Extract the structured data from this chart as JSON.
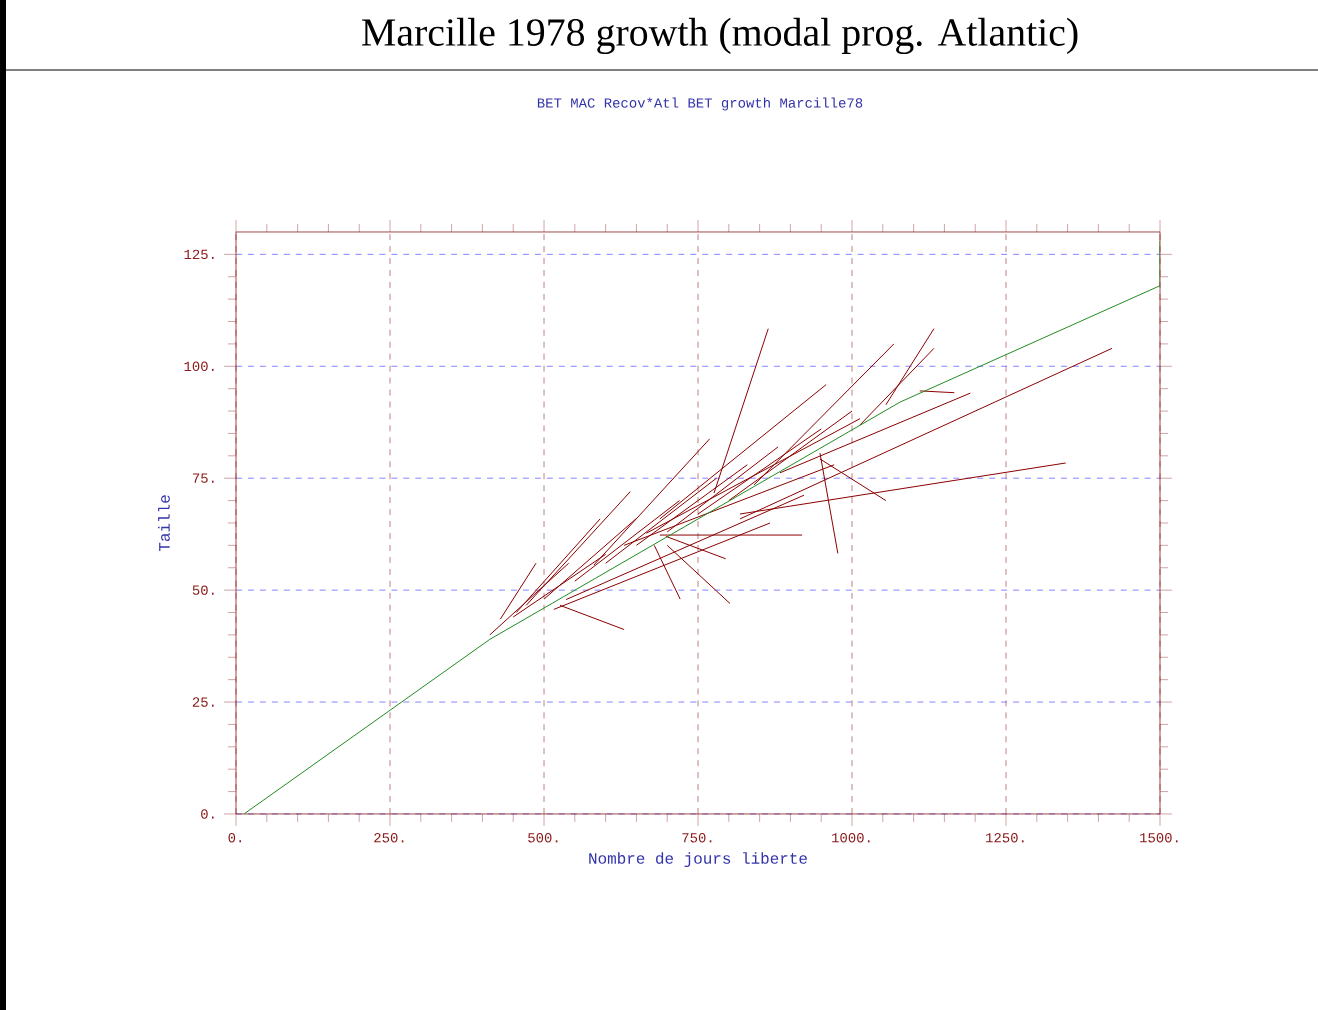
{
  "chart_data": {
    "type": "line",
    "title": "Marcille 1978 growth (modal prog. Atlantic)",
    "subtitle": "BET MAC Recov*Atl BET growth Marcille78",
    "xlabel": "Nombre de jours liberte",
    "ylabel": "Taille",
    "xlim": [
      0,
      1500
    ],
    "ylim": [
      0,
      130
    ],
    "xticks": [
      {
        "value": 0,
        "label": "0."
      },
      {
        "value": 250,
        "label": "250."
      },
      {
        "value": 500,
        "label": "500."
      },
      {
        "value": 750,
        "label": "750."
      },
      {
        "value": 1000,
        "label": "1000."
      },
      {
        "value": 1250,
        "label": "1250."
      },
      {
        "value": 1500,
        "label": "1500."
      }
    ],
    "yticks": [
      {
        "value": 0,
        "label": "0."
      },
      {
        "value": 25,
        "label": "25."
      },
      {
        "value": 50,
        "label": "50."
      },
      {
        "value": 75,
        "label": "75."
      },
      {
        "value": 100,
        "label": "100."
      },
      {
        "value": 125,
        "label": "125."
      }
    ],
    "grid": true,
    "marker": "none",
    "line_style": "solid",
    "series": [
      {
        "color": "#8b0000",
        "x": [
          412,
          540,
          null,
          776,
          864,
          null,
          1055,
          1133,
          null,
          841,
          1068,
          null,
          818,
          1422,
          null,
          818,
          1347,
          null,
          948,
          977,
          null,
          948,
          1055,
          null,
          688,
          919,
          null,
          700,
          802,
          null,
          679,
          721,
          null,
          526,
          630,
          null,
          471,
          640,
          null,
          581,
          769,
          null,
          688,
          958,
          null,
          1013,
          1133,
          null,
          883,
          1192,
          null,
          1110,
          1166,
          null,
          429,
          487,
          null,
          455,
          591,
          null,
          536,
          922,
          null,
          516,
          867,
          null,
          666,
          1013,
          null,
          630,
          971,
          null,
          698,
          795,
          null,
          450,
          600,
          null,
          500,
          650,
          null,
          550,
          720,
          null,
          600,
          780,
          null,
          650,
          830,
          null,
          700,
          880,
          null,
          750,
          950,
          null,
          800,
          1000
        ],
        "values": [
          40,
          56,
          null,
          71.7,
          108.4,
          null,
          91.4,
          108.4,
          null,
          73.5,
          105,
          null,
          65.9,
          104,
          null,
          67,
          78.4,
          null,
          80.6,
          58.2,
          null,
          79.3,
          70,
          null,
          62.3,
          62.3,
          null,
          60,
          47,
          null,
          60,
          48,
          null,
          46.6,
          41.2,
          null,
          46.6,
          72,
          null,
          55.6,
          83.8,
          null,
          65.9,
          95.9,
          null,
          86.9,
          104,
          null,
          76.2,
          94,
          null,
          94.5,
          94.1,
          null,
          43.5,
          56,
          null,
          45,
          65.9,
          null,
          47.9,
          71.2,
          null,
          45.7,
          65,
          null,
          62.7,
          88.3,
          null,
          60,
          78,
          null,
          62,
          57,
          null,
          44,
          58,
          null,
          48,
          66,
          null,
          52,
          70,
          null,
          56,
          75,
          null,
          60,
          78,
          null,
          63,
          82,
          null,
          67,
          86,
          null,
          70,
          90
        ]
      },
      {
        "color": "#228b22",
        "x": [
          13,
          412,
          1078,
          1500,
          1500
        ],
        "values": [
          0,
          39,
          92,
          118,
          128
        ]
      }
    ]
  }
}
